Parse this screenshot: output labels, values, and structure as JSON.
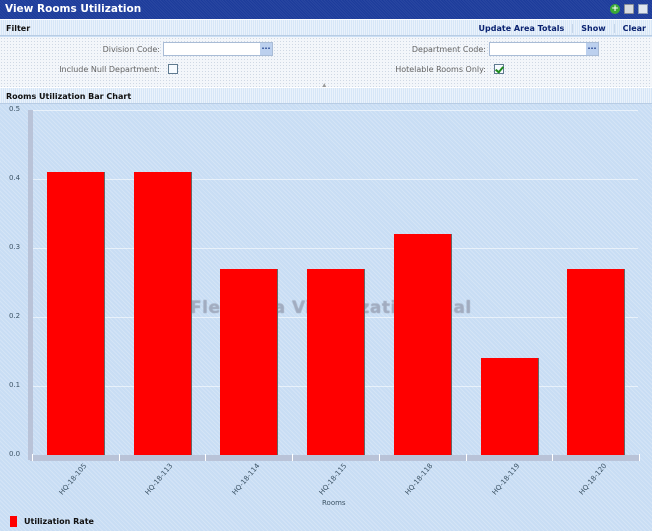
{
  "window": {
    "title": "View Rooms Utilization",
    "icons": [
      "add-icon",
      "print-icon",
      "email-icon"
    ]
  },
  "filter": {
    "title": "Filter",
    "actions": [
      "Update Area Totals",
      "Show",
      "Clear"
    ],
    "fields": {
      "division_code": {
        "label": "Division Code:",
        "value": "",
        "lookup_label": "..."
      },
      "department_code": {
        "label": "Department Code:",
        "value": "",
        "lookup_label": "..."
      },
      "include_null_department": {
        "label": "Include Null Department:",
        "checked": false
      },
      "hotelable_rooms_only": {
        "label": "Hotelable Rooms Only:",
        "checked": true
      }
    }
  },
  "chart_panel": {
    "title": "Rooms Utilization Bar Chart",
    "watermark": "Flex Data Visualization Trial"
  },
  "colors": {
    "bar": "#ff0000",
    "titlebar": "#1c3b9b",
    "background": "#c8ddf4"
  },
  "chart_data": {
    "type": "bar",
    "title": "Rooms Utilization Bar Chart",
    "xlabel": "Rooms",
    "ylabel": "",
    "ylim": [
      0,
      0.5
    ],
    "yticks": [
      "0.0",
      "0.1",
      "0.2",
      "0.3",
      "0.4",
      "0.5"
    ],
    "categories": [
      "HQ-18-105",
      "HQ-18-113",
      "HQ-18-114",
      "HQ-18-115",
      "HQ-18-118",
      "HQ-18-119",
      "HQ-18-120"
    ],
    "series": [
      {
        "name": "Utilization Rate",
        "color": "#ff0000",
        "values": [
          0.41,
          0.41,
          0.27,
          0.27,
          0.32,
          0.14,
          0.27
        ]
      }
    ],
    "legend": {
      "position": "bottom-left",
      "entries": [
        "Utilization Rate"
      ]
    },
    "grid": true
  }
}
